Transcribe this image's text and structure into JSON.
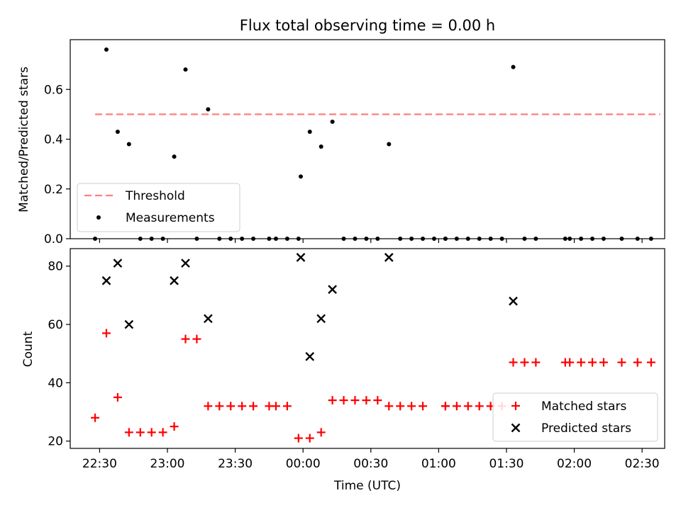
{
  "chart_data": [
    {
      "type": "scatter",
      "title": "Flux total observing time = 0.00 h",
      "xlabel": "",
      "ylabel": "Matched/Predicted stars",
      "xlim": [
        "22:17",
        "02:40"
      ],
      "ylim": [
        0,
        0.8
      ],
      "yticks": [
        0.0,
        0.2,
        0.4,
        0.6
      ],
      "ytick_labels": [
        "0.0",
        "0.2",
        "0.4",
        "0.6"
      ],
      "legend_position": "lower-left",
      "threshold": {
        "name": "Threshold",
        "value": 0.5,
        "x_range": [
          "22:28",
          "02:38"
        ],
        "color": "#ff7f7f",
        "style": "dashed"
      },
      "series": [
        {
          "name": "Measurements",
          "marker": "dot",
          "color": "#000000",
          "x": [
            "22:28",
            "22:33",
            "22:38",
            "22:43",
            "22:48",
            "22:53",
            "22:58",
            "23:03",
            "23:08",
            "23:13",
            "23:18",
            "23:23",
            "23:28",
            "23:33",
            "23:38",
            "23:45",
            "23:48",
            "23:53",
            "23:58",
            "23:59",
            "00:03",
            "00:08",
            "00:13",
            "00:18",
            "00:23",
            "00:28",
            "00:33",
            "00:38",
            "00:43",
            "00:48",
            "00:53",
            "00:58",
            "01:03",
            "01:03",
            "01:08",
            "01:13",
            "01:18",
            "01:23",
            "01:28",
            "01:33",
            "01:38",
            "01:43",
            "01:56",
            "01:58",
            "02:03",
            "02:08",
            "02:13",
            "02:21",
            "02:28",
            "02:34"
          ],
          "y": [
            0.0,
            0.76,
            0.43,
            0.38,
            0.0,
            0.0,
            0.0,
            0.33,
            0.68,
            0.0,
            0.52,
            0.0,
            0.0,
            0.0,
            0.0,
            0.0,
            0.0,
            0.0,
            0.0,
            0.25,
            0.43,
            0.37,
            0.47,
            0.0,
            0.0,
            0.0,
            0.0,
            0.38,
            0.0,
            0.0,
            0.0,
            0.0,
            0.0,
            0.0,
            0.0,
            0.0,
            0.0,
            0.0,
            0.0,
            0.69,
            0.0,
            0.0,
            0.0,
            0.0,
            0.0,
            0.0,
            0.0,
            0.0,
            0.0,
            0.0
          ]
        }
      ]
    },
    {
      "type": "scatter",
      "title": "",
      "xlabel": "Time (UTC)",
      "ylabel": "Count",
      "xlim": [
        "22:17",
        "02:40"
      ],
      "ylim": [
        17.5,
        86
      ],
      "yticks": [
        20,
        40,
        60,
        80
      ],
      "ytick_labels": [
        "20",
        "40",
        "60",
        "80"
      ],
      "xticks": [
        "22:30",
        "23:00",
        "23:30",
        "00:00",
        "00:30",
        "01:00",
        "01:30",
        "02:00",
        "02:30"
      ],
      "legend_position": "lower-right",
      "series": [
        {
          "name": "Matched stars",
          "marker": "plus",
          "color": "#ff0000",
          "x": [
            "22:28",
            "22:33",
            "22:38",
            "22:43",
            "22:48",
            "22:53",
            "22:58",
            "23:03",
            "23:08",
            "23:13",
            "23:18",
            "23:23",
            "23:28",
            "23:33",
            "23:38",
            "23:45",
            "23:48",
            "23:53",
            "23:58",
            "00:03",
            "00:08",
            "00:13",
            "00:18",
            "00:23",
            "00:28",
            "00:33",
            "00:38",
            "00:43",
            "00:48",
            "00:53",
            "01:03",
            "01:03",
            "01:08",
            "01:13",
            "01:18",
            "01:23",
            "01:28",
            "01:33",
            "01:38",
            "01:43",
            "01:56",
            "01:58",
            "02:03",
            "02:08",
            "02:13",
            "02:21",
            "02:28",
            "02:34"
          ],
          "y": [
            28,
            57,
            35,
            23,
            23,
            23,
            23,
            25,
            55,
            55,
            32,
            32,
            32,
            32,
            32,
            32,
            32,
            32,
            21,
            21,
            23,
            34,
            34,
            34,
            34,
            34,
            32,
            32,
            32,
            32,
            32,
            32,
            32,
            32,
            32,
            32,
            32,
            47,
            47,
            47,
            47,
            47,
            47,
            47,
            47,
            47,
            47,
            47
          ]
        },
        {
          "name": "Predicted stars",
          "marker": "x",
          "color": "#000000",
          "x": [
            "22:33",
            "22:38",
            "22:43",
            "23:03",
            "23:08",
            "23:18",
            "23:59",
            "00:03",
            "00:08",
            "00:13",
            "00:38",
            "01:33"
          ],
          "y": [
            75,
            81,
            60,
            75,
            81,
            62,
            83,
            49,
            62,
            72,
            83,
            68
          ]
        }
      ]
    }
  ]
}
